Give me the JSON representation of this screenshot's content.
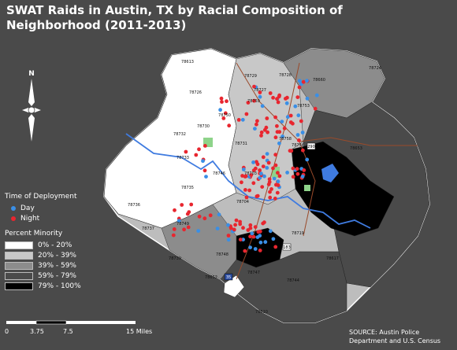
{
  "title": "SWAT Raids in Austin, TX by Racial Composition of Neighborhood (2011-2013)",
  "time_legend": {
    "heading": "Time of Deployment",
    "items": [
      {
        "label": "Day",
        "color": "#3a8fe6"
      },
      {
        "label": "Night",
        "color": "#e8262f"
      }
    ]
  },
  "minority_legend": {
    "heading": "Percent Minority",
    "items": [
      {
        "label": "0% - 20%",
        "color": "#ffffff"
      },
      {
        "label": "20% - 39%",
        "color": "#c8c8c8"
      },
      {
        "label": "39% - 59%",
        "color": "#8c8c8c"
      },
      {
        "label": "59% - 79%",
        "color": "#4a4a4a"
      },
      {
        "label": "79% - 100%",
        "color": "#000000"
      }
    ]
  },
  "scale_bar": {
    "labels": [
      "0",
      "3.75",
      "7.5",
      "15 Miles"
    ]
  },
  "source": "SOURCE: Austin Police Department and U.S. Census",
  "north_label": "N",
  "zip_labels": [
    "78613",
    "78729",
    "78728",
    "78660",
    "78726",
    "78727",
    "78759",
    "78753",
    "78750",
    "78730",
    "78732",
    "78731",
    "78758",
    "78754",
    "78653",
    "78733",
    "78746",
    "78703",
    "78735",
    "78736",
    "78704",
    "78737",
    "78749",
    "78719",
    "78739",
    "78748",
    "78617",
    "78747",
    "78652",
    "78744",
    "78610",
    "78724"
  ],
  "highway_shields": [
    "290",
    "183",
    "35"
  ]
}
